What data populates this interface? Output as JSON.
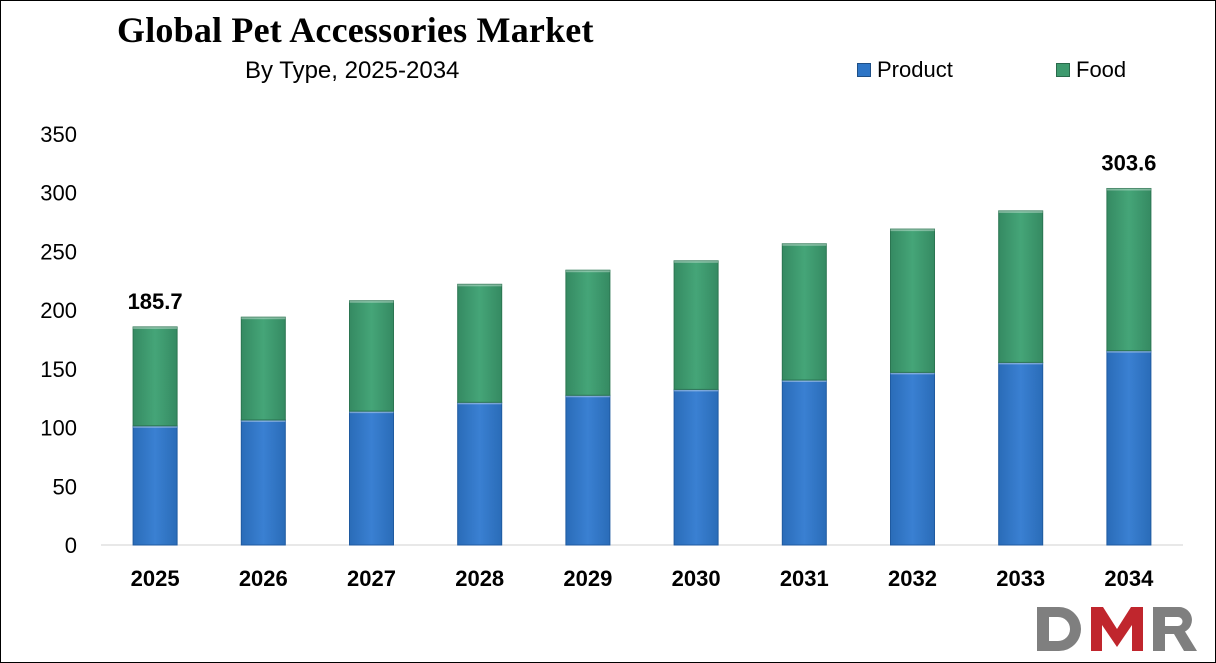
{
  "header": {
    "title": "Global Pet Accessories Market",
    "subtitle": "By Type, 2025-2034"
  },
  "legend": {
    "items": [
      {
        "label": "Product",
        "color": "#2E75C6"
      },
      {
        "label": "Food",
        "color": "#3E9A6E"
      }
    ]
  },
  "logo": {
    "text": "DMR",
    "color_gray": "#7F7F7F",
    "color_red": "#C0262D"
  },
  "chart_data": {
    "type": "bar",
    "stacked": true,
    "categories": [
      "2025",
      "2026",
      "2027",
      "2028",
      "2029",
      "2030",
      "2031",
      "2032",
      "2033",
      "2034"
    ],
    "series": [
      {
        "name": "Product",
        "color": "#2E75C6",
        "values": [
          101.5,
          106.5,
          114.0,
          121.5,
          127.5,
          132.5,
          140.5,
          147.0,
          155.5,
          165.5
        ]
      },
      {
        "name": "Food",
        "color": "#3E9A6E",
        "values": [
          84.2,
          87.5,
          94.0,
          100.5,
          106.5,
          109.5,
          116.0,
          122.0,
          129.0,
          138.1
        ]
      }
    ],
    "yticks": [
      0,
      50,
      100,
      150,
      200,
      250,
      300,
      350
    ],
    "ylim": [
      0,
      350
    ],
    "xlabel": "",
    "ylabel": "",
    "grid": false,
    "legend_position": "top-right",
    "annotations": [
      {
        "category": "2025",
        "text": "185.7"
      },
      {
        "category": "2034",
        "text": "303.6"
      }
    ]
  }
}
